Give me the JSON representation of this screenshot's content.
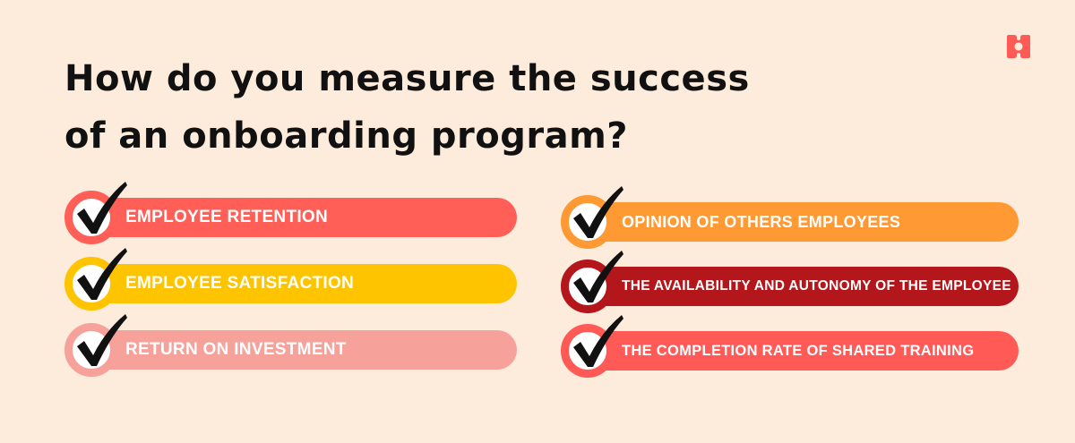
{
  "title_line1": "How do you measure the success",
  "title_line2": "of an onboarding program?",
  "logo_icon": "brand-logo-icon",
  "colors": {
    "background": "#fdebdc",
    "logo": "#ff5a55"
  },
  "left_items": [
    {
      "label": "EMPLOYEE RETENTION",
      "color": "#ff5f57"
    },
    {
      "label": "EMPLOYEE SATISFACTION",
      "color": "#ffc400"
    },
    {
      "label": "RETURN ON INVESTMENT",
      "color": "#f6a199"
    }
  ],
  "right_items": [
    {
      "label": "OPINION OF OTHERS EMPLOYEES",
      "color": "#ff9933"
    },
    {
      "label": "THE AVAILABILITY AND AUTONOMY OF THE EMPLOYEE",
      "color": "#b3161b"
    },
    {
      "label": "THE COMPLETION RATE OF SHARED TRAINING",
      "color": "#ff5a55"
    }
  ]
}
